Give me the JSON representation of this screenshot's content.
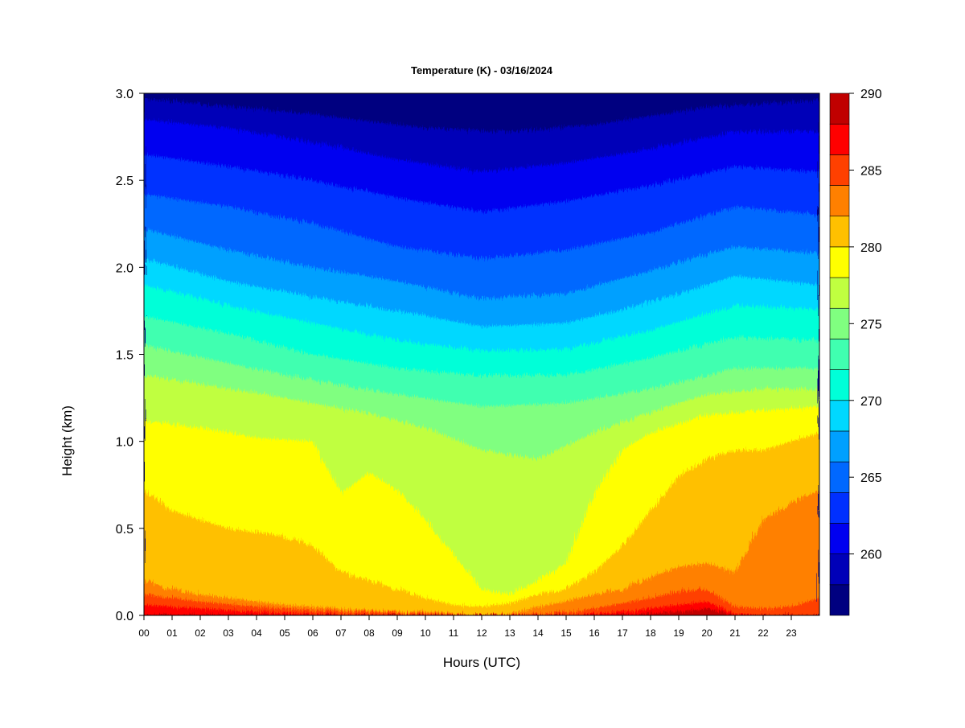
{
  "chart_data": {
    "type": "heatmap",
    "title": "Temperature (K) - 03/16/2024",
    "xlabel": "Hours (UTC)",
    "ylabel": "Height (km)",
    "x_ticks": [
      "00",
      "01",
      "02",
      "03",
      "04",
      "05",
      "06",
      "07",
      "08",
      "09",
      "10",
      "11",
      "12",
      "13",
      "14",
      "15",
      "16",
      "17",
      "18",
      "19",
      "20",
      "21",
      "22",
      "23"
    ],
    "xlim": [
      0,
      24
    ],
    "y_ticks": [
      "0.0",
      "0.5",
      "1.0",
      "1.5",
      "2.0",
      "2.5",
      "3.0"
    ],
    "ylim": [
      0,
      3
    ],
    "colorbar": {
      "ticks": [
        "260",
        "265",
        "270",
        "275",
        "280",
        "285",
        "290"
      ],
      "range": [
        256,
        290
      ],
      "levels": [
        256,
        258,
        260,
        262,
        264,
        266,
        268,
        270,
        272,
        274,
        276,
        278,
        280,
        282,
        284,
        286,
        288,
        290
      ],
      "colors": [
        "#000080",
        "#0000b8",
        "#0000f0",
        "#0030ff",
        "#0068ff",
        "#00a0ff",
        "#00d8ff",
        "#00ffd8",
        "#40ffb0",
        "#80ff80",
        "#c0ff40",
        "#ffff00",
        "#ffc000",
        "#ff8000",
        "#ff4000",
        "#ff0000",
        "#c00000",
        "#800000"
      ]
    },
    "isotherms": [
      {
        "level": 258,
        "points": [
          [
            0,
            2.97
          ],
          [
            6,
            2.88
          ],
          [
            10,
            2.8
          ],
          [
            13,
            2.78
          ],
          [
            16,
            2.82
          ],
          [
            20,
            2.92
          ],
          [
            24,
            2.96
          ]
        ]
      },
      {
        "level": 260,
        "points": [
          [
            0,
            2.85
          ],
          [
            3,
            2.8
          ],
          [
            6,
            2.72
          ],
          [
            9,
            2.62
          ],
          [
            12,
            2.55
          ],
          [
            15,
            2.6
          ],
          [
            18,
            2.68
          ],
          [
            21,
            2.78
          ],
          [
            24,
            2.78
          ]
        ]
      },
      {
        "level": 262,
        "points": [
          [
            0,
            2.65
          ],
          [
            3,
            2.58
          ],
          [
            6,
            2.5
          ],
          [
            9,
            2.4
          ],
          [
            12,
            2.32
          ],
          [
            15,
            2.38
          ],
          [
            18,
            2.47
          ],
          [
            21,
            2.58
          ],
          [
            24,
            2.55
          ]
        ]
      },
      {
        "level": 264,
        "points": [
          [
            0,
            2.42
          ],
          [
            3,
            2.35
          ],
          [
            6,
            2.25
          ],
          [
            9,
            2.12
          ],
          [
            12,
            2.05
          ],
          [
            15,
            2.1
          ],
          [
            18,
            2.2
          ],
          [
            21,
            2.35
          ],
          [
            24,
            2.3
          ]
        ]
      },
      {
        "level": 266,
        "points": [
          [
            0,
            2.22
          ],
          [
            3,
            2.1
          ],
          [
            6,
            2.0
          ],
          [
            9,
            1.92
          ],
          [
            12,
            1.82
          ],
          [
            15,
            1.85
          ],
          [
            18,
            1.98
          ],
          [
            21,
            2.12
          ],
          [
            24,
            2.08
          ]
        ]
      },
      {
        "level": 268,
        "points": [
          [
            0,
            2.05
          ],
          [
            3,
            1.92
          ],
          [
            6,
            1.83
          ],
          [
            9,
            1.75
          ],
          [
            12,
            1.66
          ],
          [
            15,
            1.68
          ],
          [
            18,
            1.8
          ],
          [
            21,
            1.95
          ],
          [
            24,
            1.9
          ]
        ]
      },
      {
        "level": 270,
        "points": [
          [
            0,
            1.9
          ],
          [
            3,
            1.78
          ],
          [
            6,
            1.68
          ],
          [
            9,
            1.58
          ],
          [
            12,
            1.52
          ],
          [
            15,
            1.53
          ],
          [
            18,
            1.64
          ],
          [
            21,
            1.78
          ],
          [
            24,
            1.76
          ]
        ]
      },
      {
        "level": 272,
        "points": [
          [
            0,
            1.72
          ],
          [
            3,
            1.62
          ],
          [
            6,
            1.5
          ],
          [
            9,
            1.42
          ],
          [
            12,
            1.38
          ],
          [
            15,
            1.38
          ],
          [
            18,
            1.48
          ],
          [
            21,
            1.6
          ],
          [
            24,
            1.58
          ]
        ]
      },
      {
        "level": 274,
        "points": [
          [
            0,
            1.55
          ],
          [
            3,
            1.45
          ],
          [
            6,
            1.35
          ],
          [
            9,
            1.27
          ],
          [
            12,
            1.2
          ],
          [
            15,
            1.22
          ],
          [
            18,
            1.3
          ],
          [
            21,
            1.42
          ],
          [
            24,
            1.42
          ]
        ]
      },
      {
        "level": 276,
        "points": [
          [
            0,
            1.38
          ],
          [
            2,
            1.33
          ],
          [
            4,
            1.28
          ],
          [
            6,
            1.22
          ],
          [
            8,
            1.16
          ],
          [
            10,
            1.08
          ],
          [
            12,
            0.95
          ],
          [
            14,
            0.9
          ],
          [
            16,
            1.05
          ],
          [
            18,
            1.17
          ],
          [
            20,
            1.27
          ],
          [
            22,
            1.3
          ],
          [
            24,
            1.3
          ]
        ]
      },
      {
        "level": 278,
        "points": [
          [
            0,
            1.12
          ],
          [
            2,
            1.08
          ],
          [
            4,
            1.02
          ],
          [
            6,
            1.0
          ],
          [
            7,
            0.7
          ],
          [
            8,
            0.82
          ],
          [
            9,
            0.72
          ],
          [
            10,
            0.55
          ],
          [
            11,
            0.35
          ],
          [
            12,
            0.15
          ],
          [
            13,
            0.12
          ],
          [
            14,
            0.2
          ],
          [
            15,
            0.3
          ],
          [
            16,
            0.7
          ],
          [
            17,
            0.95
          ],
          [
            18,
            1.05
          ],
          [
            20,
            1.15
          ],
          [
            22,
            1.18
          ],
          [
            24,
            1.2
          ]
        ]
      },
      {
        "level": 280,
        "points": [
          [
            0,
            0.72
          ],
          [
            1,
            0.6
          ],
          [
            2,
            0.55
          ],
          [
            3,
            0.5
          ],
          [
            4,
            0.48
          ],
          [
            5,
            0.45
          ],
          [
            6,
            0.4
          ],
          [
            7,
            0.25
          ],
          [
            8,
            0.2
          ],
          [
            9,
            0.15
          ],
          [
            10,
            0.1
          ],
          [
            11,
            0.06
          ],
          [
            12,
            0.05
          ],
          [
            13,
            0.07
          ],
          [
            14,
            0.12
          ],
          [
            15,
            0.15
          ],
          [
            16,
            0.25
          ],
          [
            17,
            0.4
          ],
          [
            18,
            0.6
          ],
          [
            19,
            0.8
          ],
          [
            20,
            0.9
          ],
          [
            21,
            0.95
          ],
          [
            22,
            0.95
          ],
          [
            23,
            1.0
          ],
          [
            24,
            1.05
          ]
        ]
      },
      {
        "level": 282,
        "points": [
          [
            0,
            0.2
          ],
          [
            1,
            0.15
          ],
          [
            2,
            0.12
          ],
          [
            3,
            0.1
          ],
          [
            4,
            0.08
          ],
          [
            5,
            0.06
          ],
          [
            6,
            0.05
          ],
          [
            7,
            0.04
          ],
          [
            8,
            0.03
          ],
          [
            9,
            0.02
          ],
          [
            10,
            0.02
          ],
          [
            11,
            0.01
          ],
          [
            12,
            0.0
          ],
          [
            13,
            0.01
          ],
          [
            14,
            0.05
          ],
          [
            15,
            0.08
          ],
          [
            16,
            0.12
          ],
          [
            17,
            0.15
          ],
          [
            18,
            0.22
          ],
          [
            19,
            0.28
          ],
          [
            20,
            0.3
          ],
          [
            21,
            0.25
          ],
          [
            22,
            0.55
          ],
          [
            23,
            0.65
          ],
          [
            24,
            0.72
          ]
        ]
      },
      {
        "level": 284,
        "points": [
          [
            0,
            0.12
          ],
          [
            2,
            0.08
          ],
          [
            4,
            0.05
          ],
          [
            6,
            0.03
          ],
          [
            8,
            0.02
          ],
          [
            10,
            0.01
          ],
          [
            12,
            0.0
          ],
          [
            14,
            0.01
          ],
          [
            15,
            0.02
          ],
          [
            16,
            0.04
          ],
          [
            17,
            0.07
          ],
          [
            18,
            0.1
          ],
          [
            19,
            0.14
          ],
          [
            20,
            0.15
          ],
          [
            21,
            0.05
          ],
          [
            22,
            0.04
          ],
          [
            23,
            0.05
          ],
          [
            24,
            0.1
          ]
        ]
      },
      {
        "level": 286,
        "points": [
          [
            0,
            0.06
          ],
          [
            2,
            0.04
          ],
          [
            4,
            0.02
          ],
          [
            6,
            0.01
          ],
          [
            8,
            0.0
          ],
          [
            10,
            0.0
          ],
          [
            14,
            0.0
          ],
          [
            15,
            0.0
          ],
          [
            16,
            0.01
          ],
          [
            17,
            0.02
          ],
          [
            18,
            0.04
          ],
          [
            19,
            0.06
          ],
          [
            20,
            0.08
          ],
          [
            21,
            0.01
          ],
          [
            22,
            0.0
          ],
          [
            24,
            0.0
          ]
        ]
      },
      {
        "level": 288,
        "points": [
          [
            0,
            0.0
          ],
          [
            17,
            0.0
          ],
          [
            18,
            0.01
          ],
          [
            19,
            0.02
          ],
          [
            20,
            0.04
          ],
          [
            21,
            0.0
          ],
          [
            24,
            0.0
          ]
        ]
      }
    ]
  }
}
